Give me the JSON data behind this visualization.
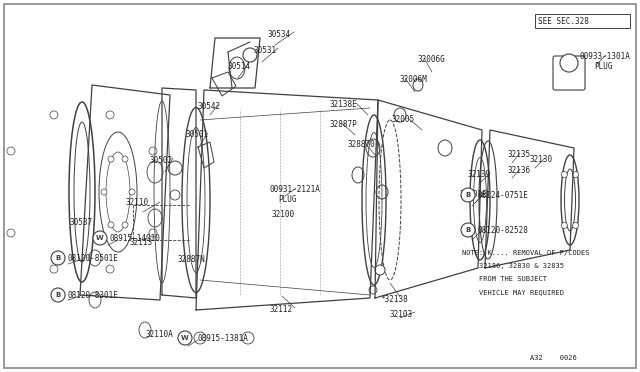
{
  "bg_color": "#ffffff",
  "line_color": "#404040",
  "text_color": "#202020",
  "border_color": "#888888",
  "note_lines": [
    "NOTE: K.... REMOVAL OF P/CODES",
    "    32186, 32830 & 32835",
    "    FROM THE SUBJECT",
    "    VEHICLE MAY REQUIRED"
  ],
  "footer": "A32    0026",
  "see_sec": "SEE SEC.328",
  "plug1": "00933-1301A",
  "plug1b": "PLUG",
  "plug2": "00931-2121A",
  "plug2b": "PLUG"
}
